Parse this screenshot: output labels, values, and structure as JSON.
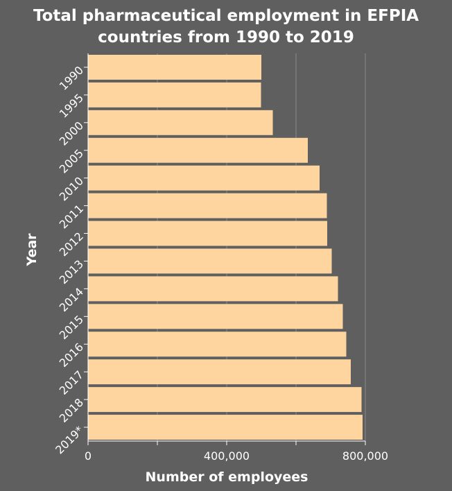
{
  "chart_data": {
    "type": "bar",
    "orientation": "horizontal",
    "title_lines": [
      "Total pharmaceutical employment in EFPIA",
      "countries from 1990 to 2019"
    ],
    "xlabel": "Number of employees",
    "ylabel": "Year",
    "categories": [
      "1990",
      "1995",
      "2000",
      "2005",
      "2010",
      "2011",
      "2012",
      "2013",
      "2014",
      "2015",
      "2016",
      "2017",
      "2018",
      "2019*"
    ],
    "values": [
      500000,
      499000,
      533000,
      634000,
      668000,
      689000,
      690000,
      703000,
      721000,
      735000,
      745000,
      758000,
      789000,
      792000
    ],
    "xlim": [
      0,
      800000
    ],
    "xticks": [
      0,
      200000,
      400000,
      600000,
      800000
    ],
    "xtick_labels": [
      "0",
      "",
      "400,000",
      "",
      "800,000"
    ],
    "grid": "vertical",
    "colors": {
      "background": "#5f5f5f",
      "bar": "#fed59e",
      "grid": "#7d7d7d",
      "axis": "#ffffff",
      "text": "#ffffff"
    }
  }
}
